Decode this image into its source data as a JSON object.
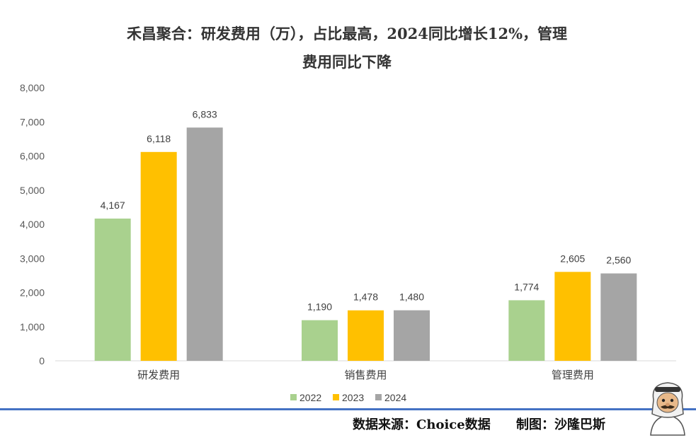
{
  "title": {
    "line1": "禾昌聚合：研发费用（万），占比最高，2024同比增长12%，管理",
    "line2": "费用同比下降"
  },
  "footer": {
    "source": "数据来源：Choice数据",
    "author": "制图：沙隆巴斯"
  },
  "colors": {
    "2022": "#a9d18e",
    "2023": "#ffc000",
    "2024": "#a5a5a5",
    "divider": "#4472c4"
  },
  "chart_data": {
    "type": "bar",
    "categories": [
      "研发费用",
      "销售费用",
      "管理费用"
    ],
    "series": [
      {
        "name": "2022",
        "values": [
          4167,
          1190,
          1774
        ]
      },
      {
        "name": "2023",
        "values": [
          6118,
          1478,
          2605
        ]
      },
      {
        "name": "2024",
        "values": [
          6833,
          1480,
          2560
        ]
      }
    ],
    "data_labels": [
      [
        "4,167",
        "1,190",
        "1,774"
      ],
      [
        "6,118",
        "1,478",
        "2,605"
      ],
      [
        "6,833",
        "1,480",
        "2,560"
      ]
    ],
    "ylim": [
      0,
      8000
    ],
    "yticks": [
      "0",
      "1,000",
      "2,000",
      "3,000",
      "4,000",
      "5,000",
      "6,000",
      "7,000",
      "8,000"
    ],
    "grid": false,
    "legend_position": "bottom"
  }
}
